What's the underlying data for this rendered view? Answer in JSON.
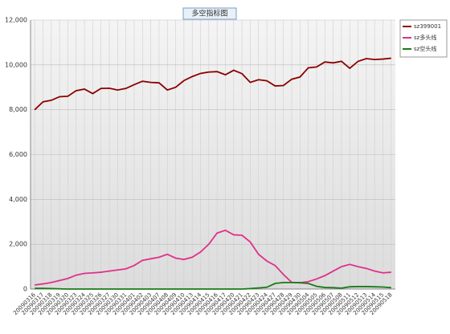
{
  "chart_data": {
    "type": "line",
    "title": "多空指标图",
    "categories": [
      "20090316",
      "20090317",
      "20090318",
      "20090319",
      "20090320",
      "20090323",
      "20090324",
      "20090325",
      "20090326",
      "20090327",
      "20090330",
      "20090331",
      "20090401",
      "20090402",
      "20090403",
      "20090407",
      "20090408",
      "20090409",
      "20090410",
      "20090413",
      "20090414",
      "20090415",
      "20090416",
      "20090417",
      "20090420",
      "20090421",
      "20090422",
      "20090423",
      "20090424",
      "20090427",
      "20090428",
      "20090429",
      "20090430",
      "20090504",
      "20090505",
      "20090506",
      "20090507",
      "20090508",
      "20090511",
      "20090512",
      "20090513",
      "20090514",
      "20090515",
      "20090518"
    ],
    "series": [
      {
        "name": "sz399001",
        "color": "#8b0000",
        "values": [
          8000,
          8350,
          8420,
          8580,
          8600,
          8850,
          8920,
          8720,
          8950,
          8960,
          8880,
          8950,
          9120,
          9270,
          9220,
          9200,
          8880,
          9000,
          9300,
          9480,
          9620,
          9680,
          9700,
          9560,
          9760,
          9610,
          9220,
          9340,
          9290,
          9060,
          9080,
          9360,
          9460,
          9870,
          9910,
          10130,
          10090,
          10160,
          9850,
          10160,
          10280,
          10240,
          10260,
          10300
        ]
      },
      {
        "name": "sz多头线",
        "color": "#e0308a",
        "values": [
          180,
          230,
          290,
          380,
          470,
          620,
          700,
          720,
          750,
          800,
          850,
          900,
          1050,
          1280,
          1350,
          1420,
          1550,
          1380,
          1320,
          1420,
          1650,
          2000,
          2500,
          2620,
          2420,
          2400,
          2100,
          1550,
          1250,
          1050,
          650,
          300,
          280,
          330,
          450,
          600,
          800,
          1000,
          1100,
          1000,
          920,
          800,
          720,
          750
        ]
      },
      {
        "name": "sz空头线",
        "color": "#1a7a1a",
        "values": [
          30,
          30,
          20,
          10,
          0,
          0,
          0,
          0,
          0,
          0,
          0,
          0,
          0,
          0,
          0,
          0,
          0,
          0,
          0,
          0,
          0,
          0,
          0,
          0,
          0,
          0,
          20,
          50,
          80,
          250,
          290,
          290,
          280,
          250,
          120,
          70,
          60,
          40,
          100,
          110,
          110,
          100,
          90,
          60
        ]
      }
    ],
    "ylim": [
      0,
      12000
    ],
    "yticks": [
      0,
      {
        "value": 2000,
        "label": "2,000"
      },
      {
        "value": 4000,
        "label": "4,000"
      },
      {
        "value": 6000,
        "label": "6,000"
      },
      {
        "value": 8000,
        "label": "8,000"
      },
      {
        "value": 10000,
        "label": "10,000"
      },
      {
        "value": 12000,
        "label": "12,000"
      }
    ],
    "grid": true,
    "legend": "right"
  }
}
